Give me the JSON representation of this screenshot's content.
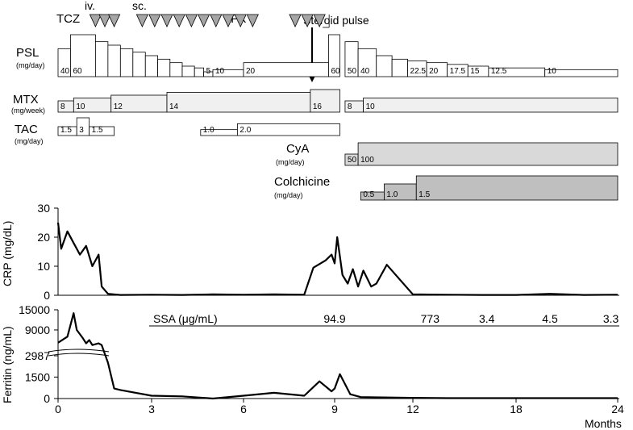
{
  "chart_data": [
    {
      "type": "timeline",
      "x_unit": "Months",
      "x_ticks": [
        "0",
        "3",
        "6",
        "9",
        "12",
        "18",
        "24"
      ],
      "drugs": {
        "tcz": {
          "label": "TCZ",
          "iv_label": "iv.",
          "sc_label": "sc.",
          "iv_doses_months": [
            1.2,
            1.5,
            1.8
          ],
          "sc_doses_months": [
            2.7,
            3.1,
            3.5,
            3.9,
            4.3,
            4.7,
            5.1,
            5.5,
            5.9,
            6.3
          ]
        },
        "ifx": {
          "label": "IFX",
          "doses_months": [
            7.7,
            8.1,
            8.5
          ]
        },
        "steroid_pulse": {
          "label": "Steroid pulse",
          "month": 9.0
        },
        "psl": {
          "label": "PSL",
          "unit": "(mg/day)",
          "segments": [
            {
              "start": 0.0,
              "end": 0.4,
              "value": 40,
              "label": "40"
            },
            {
              "start": 0.4,
              "end": 1.2,
              "value": 60,
              "label": "60"
            },
            {
              "start": 1.2,
              "end": 1.6,
              "value": 50,
              "label": ""
            },
            {
              "start": 1.6,
              "end": 2.0,
              "value": 45,
              "label": ""
            },
            {
              "start": 2.0,
              "end": 2.4,
              "value": 40,
              "label": ""
            },
            {
              "start": 2.4,
              "end": 2.8,
              "value": 35,
              "label": ""
            },
            {
              "start": 2.8,
              "end": 3.2,
              "value": 30,
              "label": ""
            },
            {
              "start": 3.2,
              "end": 3.6,
              "value": 25,
              "label": ""
            },
            {
              "start": 3.6,
              "end": 4.0,
              "value": 20,
              "label": ""
            },
            {
              "start": 4.0,
              "end": 4.4,
              "value": 15,
              "label": ""
            },
            {
              "start": 4.4,
              "end": 4.7,
              "value": 12.5,
              "label": ""
            },
            {
              "start": 4.7,
              "end": 5.0,
              "value": 5,
              "label": "5"
            },
            {
              "start": 5.0,
              "end": 6.0,
              "value": 10,
              "label": "10"
            },
            {
              "start": 6.0,
              "end": 8.8,
              "value": 20,
              "label": "20"
            },
            {
              "start": 8.8,
              "end": 9.2,
              "value": 60,
              "label": "60"
            },
            {
              "start": 9.4,
              "end": 9.9,
              "value": 50,
              "label": "50"
            },
            {
              "start": 9.9,
              "end": 10.6,
              "value": 40,
              "label": "40"
            },
            {
              "start": 10.6,
              "end": 11.2,
              "value": 30,
              "label": ""
            },
            {
              "start": 11.2,
              "end": 11.8,
              "value": 25,
              "label": ""
            },
            {
              "start": 11.8,
              "end": 12.8,
              "value": 22.5,
              "label": "22.5"
            },
            {
              "start": 12.8,
              "end": 14.0,
              "value": 20,
              "label": "20"
            },
            {
              "start": 14.0,
              "end": 15.2,
              "value": 17.5,
              "label": "17.5"
            },
            {
              "start": 15.2,
              "end": 16.4,
              "value": 15,
              "label": "15"
            },
            {
              "start": 16.4,
              "end": 19.7,
              "value": 12.5,
              "label": "12.5"
            },
            {
              "start": 19.7,
              "end": 24.0,
              "value": 10,
              "label": "10"
            }
          ]
        },
        "mtx": {
          "label": "MTX",
          "unit": "(mg/week)",
          "segments": [
            {
              "start": 0.0,
              "end": 0.5,
              "value": 8,
              "label": "8"
            },
            {
              "start": 0.5,
              "end": 1.7,
              "value": 10,
              "label": "10"
            },
            {
              "start": 1.7,
              "end": 3.5,
              "value": 12,
              "label": "12"
            },
            {
              "start": 3.5,
              "end": 8.2,
              "value": 14,
              "label": "14"
            },
            {
              "start": 8.2,
              "end": 9.2,
              "value": 16,
              "label": "16"
            },
            {
              "start": 9.4,
              "end": 10.1,
              "value": 8,
              "label": "8"
            },
            {
              "start": 10.1,
              "end": 24.0,
              "value": 10,
              "label": "10"
            }
          ]
        },
        "tac": {
          "label": "TAC",
          "unit": "(mg/day)",
          "segments": [
            {
              "start": 0.0,
              "end": 0.6,
              "value": 1.5,
              "label": "1.5"
            },
            {
              "start": 0.6,
              "end": 1.0,
              "value": 3,
              "label": "3"
            },
            {
              "start": 1.0,
              "end": 1.8,
              "value": 1.5,
              "label": "1.5"
            },
            {
              "start": 4.6,
              "end": 5.8,
              "value": 1.0,
              "label": "1.0"
            },
            {
              "start": 5.8,
              "end": 9.2,
              "value": 2.0,
              "label": "2.0"
            }
          ]
        },
        "cya": {
          "label": "CyA",
          "unit": "(mg/day)",
          "segments": [
            {
              "start": 9.4,
              "end": 9.9,
              "value": 50,
              "label": "50"
            },
            {
              "start": 9.9,
              "end": 24.0,
              "value": 100,
              "label": "100"
            }
          ]
        },
        "colchicine": {
          "label": "Colchicine",
          "unit": "(mg/day)",
          "segments": [
            {
              "start": 10.0,
              "end": 10.9,
              "value": 0.5,
              "label": "0.5"
            },
            {
              "start": 10.9,
              "end": 12.2,
              "value": 1.0,
              "label": "1.0"
            },
            {
              "start": 12.2,
              "end": 24.0,
              "value": 1.5,
              "label": "1.5"
            }
          ]
        }
      }
    },
    {
      "type": "line",
      "ylabel": "CRP (mg/dL)",
      "ylim": [
        0,
        30
      ],
      "yticks": [
        "0",
        "10",
        "20",
        "30"
      ],
      "x": [
        0,
        0.1,
        0.3,
        0.5,
        0.7,
        0.9,
        1.1,
        1.3,
        1.4,
        1.6,
        2,
        3,
        4,
        5,
        6,
        7,
        8,
        8.3,
        8.7,
        8.9,
        9.0,
        9.1,
        9.3,
        9.5,
        9.7,
        9.9,
        10.1,
        10.4,
        10.6,
        11,
        12,
        14,
        16,
        18,
        20,
        22,
        24
      ],
      "y": [
        25,
        16,
        22,
        18,
        14,
        17,
        10,
        14,
        3,
        0.5,
        0.1,
        0.2,
        0.1,
        0.3,
        0.2,
        0.3,
        0.2,
        9.5,
        12,
        14,
        11,
        20,
        7,
        4,
        9,
        3,
        8.5,
        3,
        4,
        10.5,
        0.3,
        0.2,
        0.1,
        0.1,
        0.5,
        0.1,
        0.2
      ]
    },
    {
      "type": "line",
      "ylabel": "Ferritin (ng/mL)",
      "yticks": [
        "0",
        "1500",
        "2987",
        "9000",
        "15000"
      ],
      "axis_break": "2987",
      "x": [
        0,
        0.3,
        0.5,
        0.6,
        0.8,
        0.9,
        1.0,
        1.1,
        1.3,
        1.4,
        1.6,
        1.8,
        2,
        3,
        4,
        5,
        6,
        7,
        8,
        8.5,
        8.9,
        9.0,
        9.2,
        9.6,
        10,
        12,
        14,
        16,
        18,
        20,
        22,
        24
      ],
      "y": [
        5200,
        7000,
        14000,
        9000,
        6500,
        5000,
        6000,
        4500,
        5000,
        4500,
        2500,
        700,
        600,
        200,
        150,
        0,
        200,
        400,
        200,
        1200,
        500,
        700,
        1700,
        300,
        100,
        50,
        30,
        30,
        30,
        30,
        30,
        30
      ],
      "ssa": {
        "label": "SSA (μg/mL)",
        "values": [
          {
            "month": 9.0,
            "text": "94.9"
          },
          {
            "month": 13.0,
            "text": "773"
          },
          {
            "month": 16.3,
            "text": "3.4"
          },
          {
            "month": 20.0,
            "text": "4.5"
          },
          {
            "month": 23.6,
            "text": "3.3"
          }
        ]
      }
    }
  ],
  "colors": {
    "bar_light": "#f0f0f0",
    "cya_fill": "#d9d9d9",
    "colchicine_fill": "#bfbfbf",
    "triangle_fill": "#a6a6a6",
    "line": "#000000"
  },
  "icons": {
    "infusion_marker": "triangle-down-icon",
    "pulse_marker": "arrow-down-icon"
  }
}
